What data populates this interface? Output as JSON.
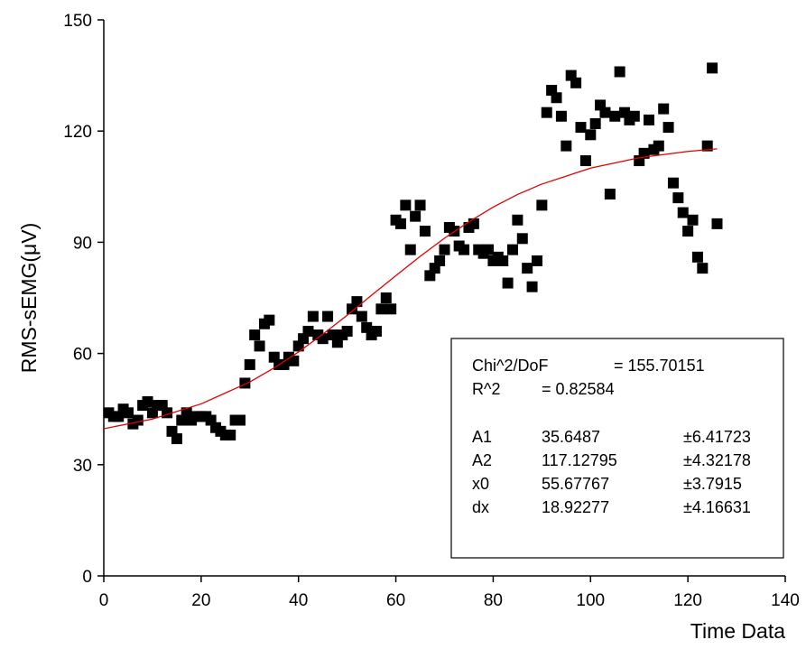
{
  "chart_data": {
    "type": "scatter",
    "x_label": "Time Data",
    "y_label": "RMS-sEMG(μV)",
    "xlim": [
      0,
      140
    ],
    "xticks": [
      0,
      20,
      40,
      60,
      80,
      100,
      120,
      140
    ],
    "ylim": [
      0,
      150
    ],
    "yticks": [
      0,
      30,
      60,
      90,
      120,
      150
    ],
    "series": [
      {
        "color": "#000000",
        "marker": "square",
        "x": [
          1,
          2,
          3,
          4,
          5,
          6,
          7,
          8,
          9,
          10,
          11,
          12,
          13,
          14,
          15,
          16,
          17,
          18,
          19,
          20,
          21,
          22,
          23,
          24,
          25,
          26,
          27,
          28,
          29,
          30,
          31,
          32,
          33,
          34,
          35,
          36,
          37,
          38,
          39,
          40,
          41,
          42,
          43,
          44,
          45,
          46,
          47,
          48,
          49,
          50,
          51,
          52,
          53,
          54,
          55,
          56,
          57,
          58,
          59,
          60,
          61,
          62,
          63,
          64,
          65,
          66,
          67,
          68,
          69,
          70,
          71,
          72,
          73,
          74,
          75,
          76,
          77,
          78,
          79,
          80,
          81,
          82,
          83,
          84,
          85,
          86,
          87,
          88,
          89,
          90,
          91,
          92,
          93,
          94,
          95,
          96,
          97,
          98,
          99,
          100,
          101,
          102,
          103,
          104,
          105,
          106,
          107,
          108,
          109,
          110,
          111,
          112,
          113,
          114,
          115,
          116,
          117,
          118,
          119,
          120,
          121,
          122,
          123,
          124,
          125,
          126
        ],
        "values": [
          44,
          43,
          43,
          45,
          44,
          41,
          42,
          46,
          47,
          44,
          46,
          46,
          44,
          39,
          37,
          42,
          44,
          42,
          43,
          43,
          43,
          42,
          40,
          39,
          38,
          38,
          42,
          42,
          52,
          57,
          65,
          62,
          68,
          69,
          59,
          57,
          57,
          59,
          58,
          62,
          64,
          66,
          70,
          65,
          64,
          70,
          65,
          63,
          65,
          66,
          72,
          74,
          70,
          67,
          65,
          66,
          72,
          75,
          72,
          96,
          95,
          100,
          88,
          97,
          100,
          93,
          81,
          83,
          85,
          88,
          94,
          93,
          89,
          88,
          94,
          95,
          88,
          87,
          88,
          85,
          86,
          85,
          79,
          88,
          96,
          91,
          83,
          78,
          85,
          100,
          125,
          131,
          129,
          124,
          116,
          135,
          133,
          121,
          112,
          119,
          122,
          127,
          125,
          103,
          124,
          136,
          125,
          123,
          124,
          112,
          114,
          123,
          115,
          116,
          126,
          121,
          106,
          102,
          98,
          93,
          96,
          86,
          83,
          116,
          137,
          95
        ]
      },
      {
        "color": "#e00000",
        "line": true,
        "x": [
          0,
          10,
          20,
          30,
          35,
          40,
          45,
          50,
          55,
          60,
          65,
          70,
          75,
          80,
          85,
          90,
          100,
          110,
          120,
          126
        ],
        "values": [
          39.7,
          42.3,
          46.4,
          52.3,
          56.1,
          60.4,
          65.2,
          70.3,
          75.7,
          81.0,
          86.2,
          91.1,
          95.5,
          99.5,
          102.9,
          105.7,
          110.0,
          112.8,
          114.5,
          115.2
        ]
      }
    ],
    "fit_stats": [
      [
        "Chi^2/DoF",
        "= 155.70151"
      ],
      [
        "R^2",
        "= 0.82584"
      ]
    ],
    "fit_params": [
      [
        "A1",
        "35.6487",
        "±6.41723"
      ],
      [
        "A2",
        "117.12795",
        "±4.32178"
      ],
      [
        "x0",
        "55.67767",
        "±3.7915"
      ],
      [
        "dx",
        "18.92277",
        "±4.16631"
      ]
    ]
  }
}
